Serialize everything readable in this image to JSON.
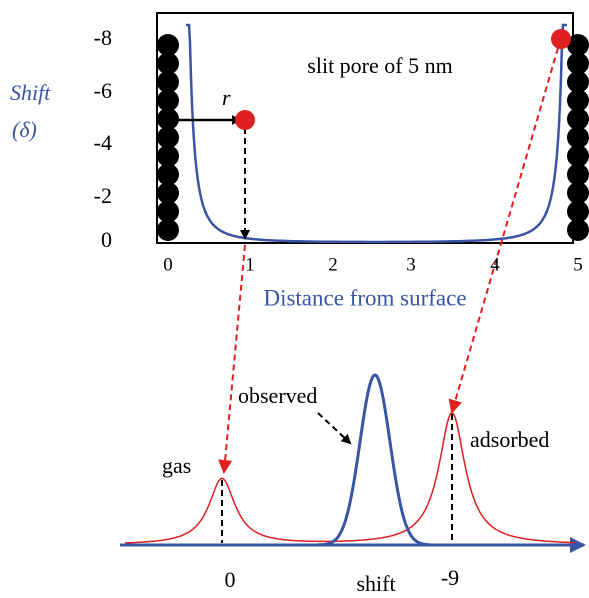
{
  "top_plot": {
    "annotation": "slit pore of 5 nm",
    "r_label": "r",
    "y_label_line1": "Shift",
    "y_label_line2": "(δ)",
    "x_label": "Distance from surface",
    "y_tick_labels": [
      "-8",
      "-6",
      "-4",
      "-2",
      "0"
    ],
    "x_tick_labels": [
      "0",
      "1",
      "2",
      "3",
      "4",
      "5"
    ]
  },
  "bottom_plot": {
    "gas_label": "gas",
    "observed_label": "observed",
    "adsorbed_label": "adsorbed",
    "axis_label": "shift",
    "gas_shift": "0",
    "adsorbed_shift": "-9"
  }
}
